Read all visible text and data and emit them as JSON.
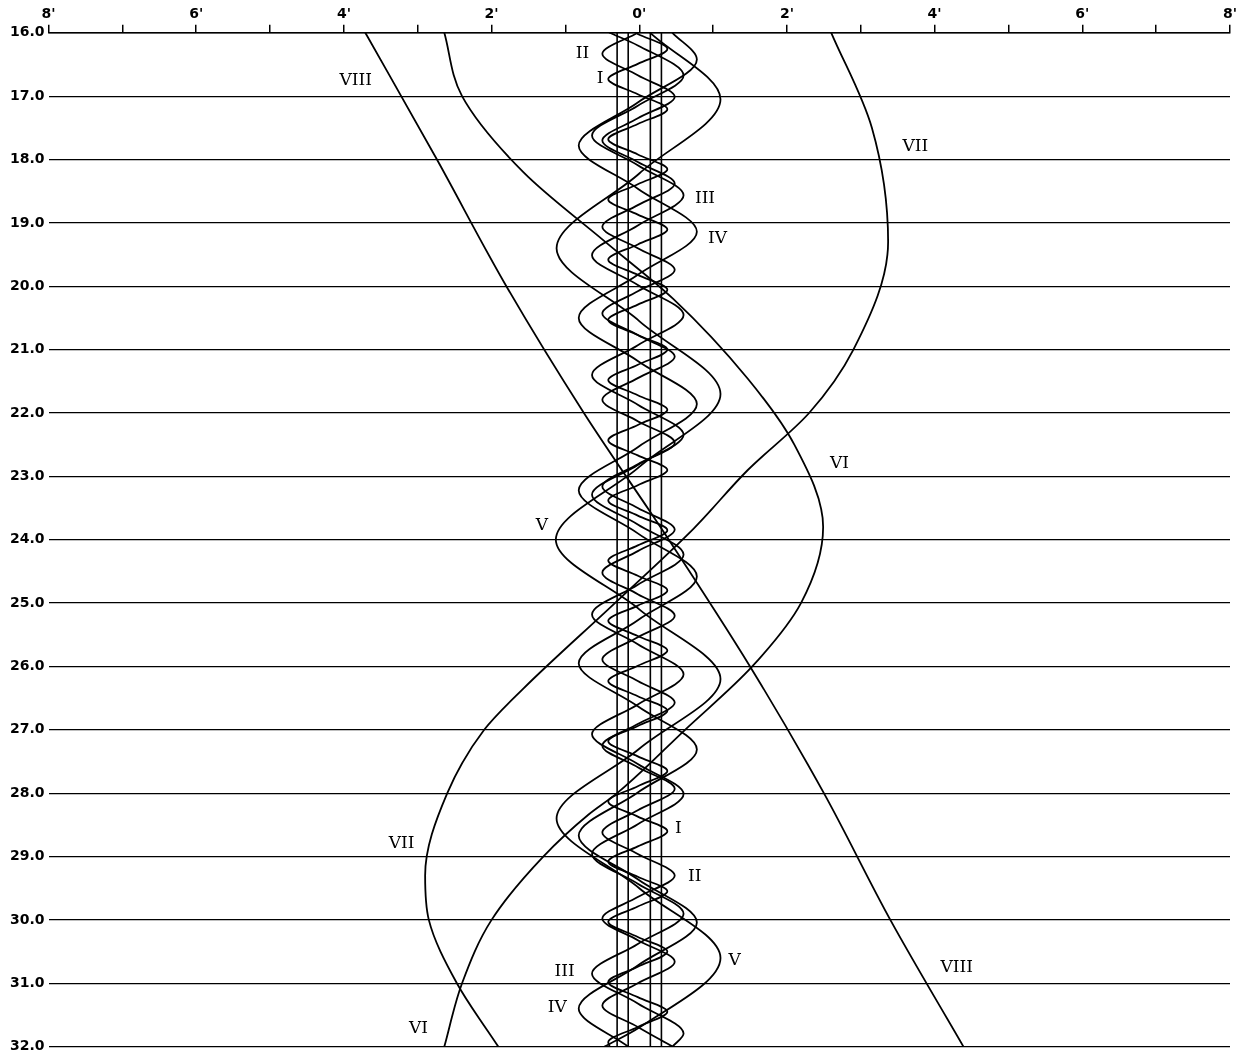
{
  "chart_data": {
    "type": "line",
    "xlim": [
      -8,
      8
    ],
    "xticks": [
      {
        "value": -8,
        "label": "8'"
      },
      {
        "value": -7,
        "label": null
      },
      {
        "value": -6,
        "label": "6'"
      },
      {
        "value": -5,
        "label": null
      },
      {
        "value": -4,
        "label": "4'"
      },
      {
        "value": -3,
        "label": null
      },
      {
        "value": -2,
        "label": "2'"
      },
      {
        "value": -1,
        "label": null
      },
      {
        "value": 0,
        "label": "0'"
      },
      {
        "value": 1,
        "label": null
      },
      {
        "value": 2,
        "label": "2'"
      },
      {
        "value": 3,
        "label": null
      },
      {
        "value": 4,
        "label": "4'"
      },
      {
        "value": 5,
        "label": null
      },
      {
        "value": 6,
        "label": "6'"
      },
      {
        "value": 7,
        "label": null
      },
      {
        "value": 8,
        "label": "8'"
      }
    ],
    "ylim": [
      32,
      16
    ],
    "yticks": [
      {
        "value": 16,
        "label": "16.0"
      },
      {
        "value": 17,
        "label": "17.0"
      },
      {
        "value": 18,
        "label": "18.0"
      },
      {
        "value": 19,
        "label": "19.0"
      },
      {
        "value": 20,
        "label": "20.0"
      },
      {
        "value": 21,
        "label": "21.0"
      },
      {
        "value": 22,
        "label": "22.0"
      },
      {
        "value": 23,
        "label": "23.0"
      },
      {
        "value": 24,
        "label": "24.0"
      },
      {
        "value": 25,
        "label": "25.0"
      },
      {
        "value": 26,
        "label": "26.0"
      },
      {
        "value": 27,
        "label": "27.0"
      },
      {
        "value": 28,
        "label": "28.0"
      },
      {
        "value": 29,
        "label": "29.0"
      },
      {
        "value": 30,
        "label": "30.0"
      },
      {
        "value": 31,
        "label": "31.0"
      },
      {
        "value": 32,
        "label": "32.0"
      }
    ],
    "grid": "y",
    "legend": false,
    "series": [
      {
        "color": "#000000",
        "values": [
          16.02,
          16.255,
          16.49,
          16.73,
          16.97,
          17.205,
          17.44,
          17.68,
          17.92,
          18.155,
          18.39,
          18.63,
          18.87,
          19.105,
          19.34,
          19.58,
          19.82,
          20.055,
          20.29,
          20.53,
          20.77,
          21.0,
          21.24,
          21.48,
          21.72,
          21.95,
          22.19,
          22.43,
          22.67,
          22.9,
          23.14,
          23.38,
          23.62,
          23.85,
          24.09,
          24.33,
          24.57,
          24.8,
          25.04,
          25.28,
          25.52,
          25.75,
          25.99,
          26.23,
          26.47,
          26.7,
          26.94,
          27.18,
          27.42,
          27.65,
          27.89,
          28.13,
          28.37,
          28.6,
          28.84,
          29.08,
          29.32,
          29.55,
          29.79,
          30.03,
          30.27,
          30.5,
          30.74,
          30.98,
          31.22,
          31.45,
          31.69,
          31.93,
          32.0
        ],
        "x": [
          -0.02,
          0.38,
          -0.02,
          -0.42,
          -0.02,
          0.38,
          -0.02,
          -0.42,
          -0.02,
          0.38,
          -0.02,
          -0.42,
          -0.02,
          0.38,
          -0.02,
          -0.42,
          -0.02,
          0.38,
          -0.02,
          -0.42,
          -0.02,
          0.38,
          -0.02,
          -0.42,
          -0.02,
          0.38,
          -0.02,
          -0.42,
          -0.02,
          0.38,
          -0.02,
          -0.42,
          -0.02,
          0.38,
          -0.02,
          -0.42,
          -0.02,
          0.38,
          -0.02,
          -0.42,
          -0.02,
          0.38,
          -0.02,
          -0.42,
          -0.02,
          0.38,
          -0.02,
          -0.42,
          -0.02,
          0.38,
          -0.02,
          -0.42,
          -0.02,
          0.38,
          -0.02,
          -0.42,
          -0.02,
          0.38,
          -0.02,
          -0.42,
          -0.02,
          0.38,
          -0.02,
          -0.42,
          -0.02,
          0.38,
          -0.02,
          -0.42,
          -0.4
        ]
      },
      {
        "color": "#000000",
        "values": [
          16.0,
          16.33,
          16.67,
          17.01,
          17.35,
          17.7,
          18.04,
          18.38,
          18.72,
          19.06,
          19.4,
          19.74,
          20.08,
          20.43,
          20.77,
          21.11,
          21.45,
          21.79,
          22.13,
          22.47,
          22.81,
          23.16,
          23.5,
          23.84,
          24.18,
          24.52,
          24.86,
          25.2,
          25.54,
          25.89,
          26.23,
          26.57,
          26.91,
          27.25,
          27.59,
          27.93,
          28.27,
          28.62,
          28.96,
          29.3,
          29.64,
          29.98,
          30.32,
          30.66,
          31.0,
          31.35,
          31.69,
          32.0
        ],
        "x": [
          -0.02,
          -0.5,
          -0.02,
          0.48,
          -0.02,
          -0.5,
          -0.02,
          0.48,
          -0.02,
          -0.5,
          -0.02,
          0.48,
          -0.02,
          -0.5,
          -0.02,
          0.48,
          -0.02,
          -0.5,
          -0.02,
          0.48,
          -0.02,
          -0.5,
          -0.02,
          0.48,
          -0.02,
          -0.5,
          -0.02,
          0.48,
          -0.02,
          -0.5,
          -0.02,
          0.48,
          -0.02,
          -0.5,
          -0.02,
          0.48,
          -0.02,
          -0.5,
          -0.02,
          0.48,
          -0.02,
          -0.5,
          -0.02,
          0.48,
          -0.02,
          -0.5,
          -0.02,
          0.45
        ]
      },
      {
        "color": "#000000",
        "values": [
          16.0,
          16.2,
          16.675,
          17.15,
          17.62,
          18.09,
          18.565,
          19.04,
          19.51,
          19.98,
          20.455,
          20.93,
          21.4,
          21.87,
          22.345,
          22.82,
          23.29,
          23.76,
          24.235,
          24.71,
          25.18,
          25.65,
          26.125,
          26.6,
          27.07,
          27.54,
          28.015,
          28.49,
          28.96,
          29.43,
          29.905,
          30.38,
          30.85,
          31.32,
          31.795,
          32.0
        ],
        "x": [
          -0.4,
          -0.02,
          0.6,
          -0.02,
          -0.64,
          -0.02,
          0.6,
          -0.02,
          -0.64,
          -0.02,
          0.6,
          -0.02,
          -0.64,
          -0.02,
          0.6,
          -0.02,
          -0.64,
          -0.02,
          0.6,
          -0.02,
          -0.64,
          -0.02,
          0.6,
          -0.02,
          -0.64,
          -0.02,
          0.6,
          -0.02,
          -0.64,
          -0.02,
          0.6,
          -0.02,
          -0.64,
          -0.02,
          0.6,
          0.45
        ]
      },
      {
        "color": "#000000",
        "values": [
          16.0,
          16.42,
          17.1,
          17.78,
          18.46,
          19.14,
          19.82,
          20.5,
          21.18,
          21.86,
          22.54,
          23.22,
          23.9,
          24.58,
          25.27,
          25.95,
          26.63,
          27.31,
          27.99,
          28.67,
          29.36,
          30.04,
          30.72,
          31.4,
          32.0
        ],
        "x": [
          0.45,
          0.78,
          -0.02,
          -0.82,
          -0.02,
          0.78,
          -0.02,
          -0.82,
          -0.02,
          0.78,
          -0.02,
          -0.82,
          -0.02,
          0.78,
          -0.02,
          -0.82,
          -0.02,
          0.78,
          -0.02,
          -0.82,
          -0.02,
          0.78,
          -0.02,
          -0.82,
          -0.15
        ]
      },
      {
        "color": "#000000",
        "values": [
          16.0,
          17.05,
          18.22,
          19.4,
          20.55,
          21.7,
          22.85,
          24.0,
          25.1,
          26.2,
          27.3,
          28.4,
          29.5,
          30.6,
          31.7,
          32.0
        ],
        "x": [
          0.15,
          1.1,
          0,
          -1.12,
          0,
          1.1,
          0,
          -1.13,
          0,
          1.1,
          0,
          -1.12,
          0,
          1.1,
          0,
          -0.47
        ]
      },
      {
        "color": "#000000",
        "values": [
          16,
          17,
          18.2,
          19.3,
          20.2,
          21.46,
          22.5,
          23.8,
          25,
          26,
          27,
          28,
          28.34,
          29,
          30,
          31,
          32
        ],
        "x": [
          -2.64,
          -2.4,
          -1.57,
          -0.46,
          0.46,
          1.47,
          2.1,
          2.49,
          2.19,
          1.53,
          0.62,
          -0.3,
          -0.69,
          -1.3,
          -2.0,
          -2.4,
          -2.64
        ]
      },
      {
        "color": "#000000",
        "values": [
          16,
          17.5,
          19.3,
          21,
          22,
          22.9,
          23.82,
          25,
          26.35,
          27,
          28,
          29.3,
          30,
          31,
          32
        ],
        "x": [
          2.6,
          3.15,
          3.37,
          2.9,
          2.3,
          1.47,
          0.74,
          -0.33,
          -1.57,
          -2.1,
          -2.6,
          -2.9,
          -2.85,
          -2.47,
          -1.91
        ]
      },
      {
        "color": "#000000",
        "values": [
          16,
          18,
          20,
          22,
          24,
          26,
          28,
          30,
          32
        ],
        "x": [
          -3.71,
          -2.74,
          -1.8,
          -0.75,
          0.4,
          1.5,
          2.5,
          3.4,
          4.39
        ]
      }
    ],
    "ref_lines": [
      {
        "axis": "x",
        "value": -0.3,
        "color": "#000000"
      },
      {
        "axis": "x",
        "value": -0.15,
        "color": "#000000"
      },
      {
        "axis": "x",
        "value": 0.15,
        "color": "#000000"
      },
      {
        "axis": "x",
        "value": 0.3,
        "color": "#000000"
      }
    ],
    "annotations": [
      {
        "text": "II",
        "x": -0.77,
        "y": 16.33
      },
      {
        "text": "I",
        "x": -0.53,
        "y": 16.73
      },
      {
        "text": "VIII",
        "x": -3.84,
        "y": 16.76
      },
      {
        "text": "VII",
        "x": 3.74,
        "y": 17.8
      },
      {
        "text": "III",
        "x": 0.89,
        "y": 18.62
      },
      {
        "text": "IV",
        "x": 1.06,
        "y": 19.25
      },
      {
        "text": "VI",
        "x": 2.71,
        "y": 22.8
      },
      {
        "text": "V",
        "x": -1.32,
        "y": 23.78
      },
      {
        "text": "VII",
        "x": -3.22,
        "y": 28.79
      },
      {
        "text": "I",
        "x": 0.53,
        "y": 28.56
      },
      {
        "text": "II",
        "x": 0.75,
        "y": 29.31
      },
      {
        "text": "V",
        "x": 1.29,
        "y": 30.65
      },
      {
        "text": "VIII",
        "x": 4.3,
        "y": 30.76
      },
      {
        "text": "III",
        "x": -1.01,
        "y": 30.81
      },
      {
        "text": "IV",
        "x": -1.11,
        "y": 31.39
      },
      {
        "text": "VI",
        "x": -2.99,
        "y": 31.71
      }
    ]
  }
}
